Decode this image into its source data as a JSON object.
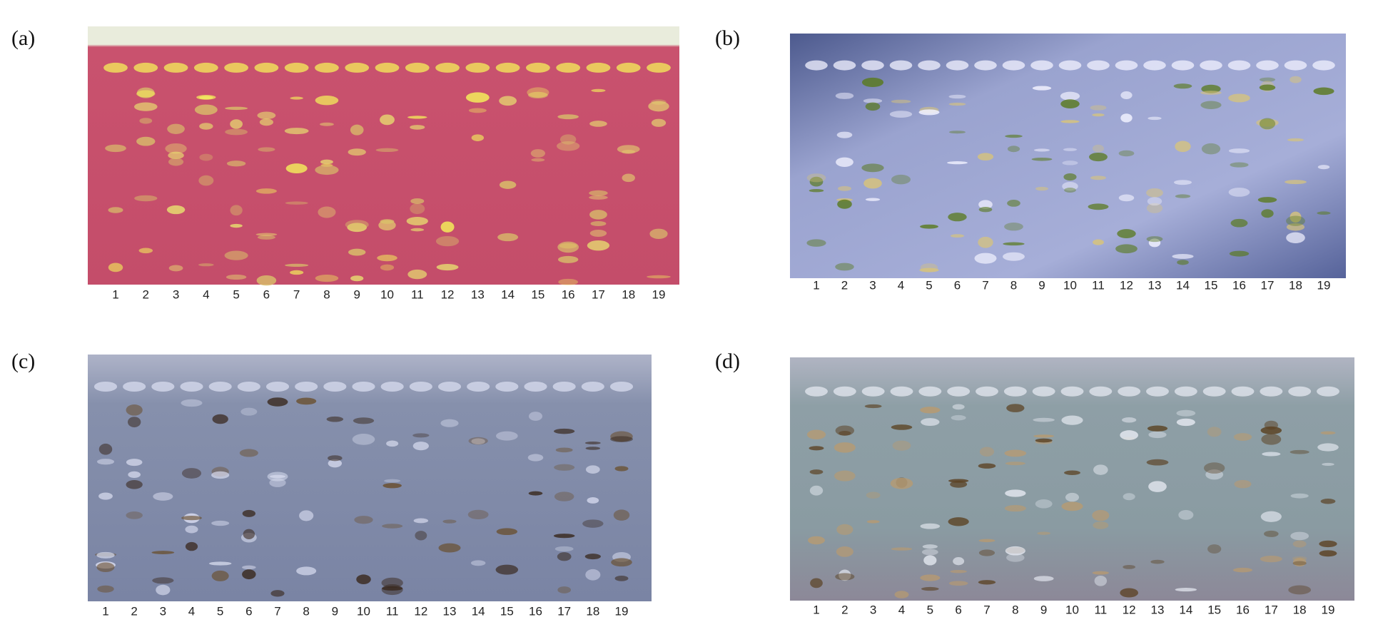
{
  "panels": [
    {
      "label": "(a)",
      "lanes": [
        "1",
        "2",
        "3",
        "4",
        "5",
        "6",
        "7",
        "8",
        "9",
        "10",
        "11",
        "12",
        "13",
        "14",
        "15",
        "16",
        "17",
        "18",
        "19"
      ]
    },
    {
      "label": "(b)",
      "lanes": [
        "1",
        "2",
        "3",
        "4",
        "5",
        "6",
        "7",
        "8",
        "9",
        "10",
        "11",
        "12",
        "13",
        "14",
        "15",
        "16",
        "17",
        "18",
        "19"
      ]
    },
    {
      "label": "(c)",
      "lanes": [
        "1",
        "2",
        "3",
        "4",
        "5",
        "6",
        "7",
        "8",
        "9",
        "10",
        "11",
        "12",
        "13",
        "14",
        "15",
        "16",
        "17",
        "18",
        "19"
      ]
    },
    {
      "label": "(d)",
      "lanes": [
        "1",
        "2",
        "3",
        "4",
        "5",
        "6",
        "7",
        "8",
        "9",
        "10",
        "11",
        "12",
        "13",
        "14",
        "15",
        "16",
        "17",
        "18",
        "19"
      ]
    }
  ]
}
